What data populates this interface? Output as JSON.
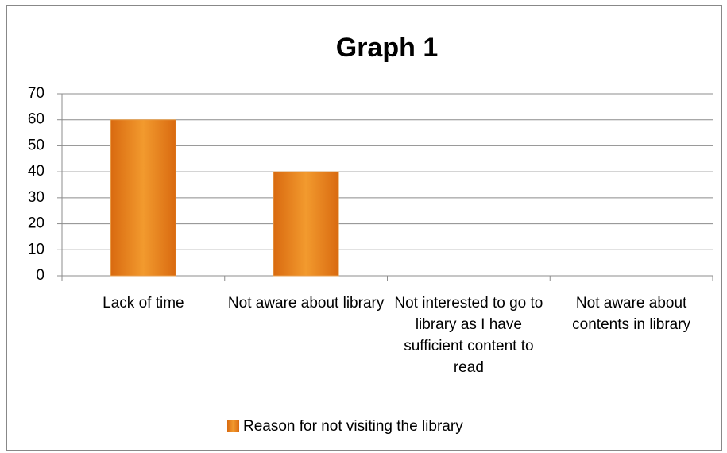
{
  "chart_data": {
    "type": "bar",
    "title": "Graph 1",
    "categories": [
      "Lack of time",
      "Not aware about library",
      "Not interested to go to library as I have sufficient content to read",
      "Not aware about contents in library"
    ],
    "series": [
      {
        "name": "Reason for not visiting the library",
        "color": "#f29a2e",
        "values": [
          60,
          40,
          0,
          0
        ]
      }
    ],
    "ylim": [
      0,
      70
    ],
    "yticks": [
      0,
      10,
      20,
      30,
      40,
      50,
      60,
      70
    ],
    "grid": true,
    "legend": "bottom"
  }
}
